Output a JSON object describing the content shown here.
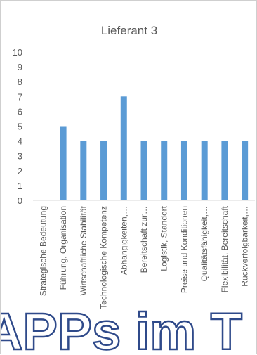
{
  "chart_data": {
    "type": "bar",
    "title": "Lieferant 3",
    "categories": [
      "Strategische Bedeutung",
      "Führung, Organisation",
      "Wirtschaftliche Stabilität",
      "Technologische Kompetenz",
      "Abhängigkeiten,…",
      "Bereitschaft zur…",
      "Logistik, Standort",
      "Preise und Konditionen",
      "Qualitätsfähigkeit,…",
      "Flexibilität, Bereitschaft",
      "Rückverfolgbarkeit,…"
    ],
    "values": [
      0,
      5,
      4,
      4,
      7,
      4,
      4,
      4,
      4,
      4,
      4
    ],
    "ylim": [
      0,
      10
    ],
    "yticks": [
      0,
      1,
      2,
      3,
      4,
      5,
      6,
      7,
      8,
      9,
      10
    ],
    "grid": false,
    "legend": "none",
    "bar_color": "#5b9bd5"
  },
  "watermark": "APPs im T"
}
